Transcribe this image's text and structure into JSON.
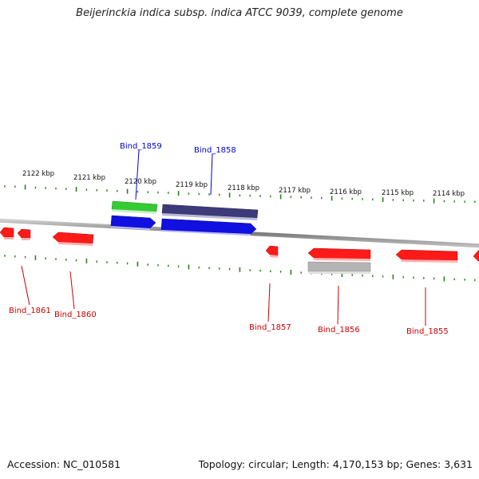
{
  "title": "Beijerinckia indica subsp. indica ATCC 9039, complete genome",
  "footer": {
    "accession": "Accession: NC_010581",
    "summary": "Topology: circular; Length: 4,170,153 bp; Genes: 3,631"
  },
  "colors": {
    "tick": "#2e7d1e",
    "backbone": "#888888",
    "forward_label": "#0000cc",
    "reverse_label": "#cc0000",
    "gene_red": "#ff1a1a",
    "gene_blue": "#1010e0",
    "gene_green": "#33cc33",
    "gene_navy": "#3c3a78",
    "gene_gray": "#b4b4b4"
  },
  "ticks": [
    {
      "label": "2122 kbp"
    },
    {
      "label": "2121 kbp"
    },
    {
      "label": "2120 kbp"
    },
    {
      "label": "2119 kbp"
    },
    {
      "label": "2118 kbp"
    },
    {
      "label": "2117 kbp"
    },
    {
      "label": "2116 kbp"
    },
    {
      "label": "2115 kbp"
    },
    {
      "label": "2114 kbp"
    }
  ],
  "genes": [
    {
      "id": "Bind_1859",
      "strand": "forward",
      "color": "gene_green",
      "labeled": true
    },
    {
      "id": "Bind_1858",
      "strand": "forward",
      "color": "gene_navy",
      "labeled": true
    },
    {
      "id": "Bind_1861",
      "strand": "reverse",
      "color": "gene_red",
      "labeled": true
    },
    {
      "id": "Bind_1860",
      "strand": "reverse",
      "color": "gene_red",
      "labeled": true
    },
    {
      "id": "Bind_1857",
      "strand": "reverse",
      "color": "gene_red",
      "labeled": true
    },
    {
      "id": "Bind_1856",
      "strand": "reverse",
      "color": "gene_gray",
      "labeled": true
    },
    {
      "id": "Bind_1855",
      "strand": "reverse",
      "color": "gene_red",
      "labeled": true
    }
  ]
}
